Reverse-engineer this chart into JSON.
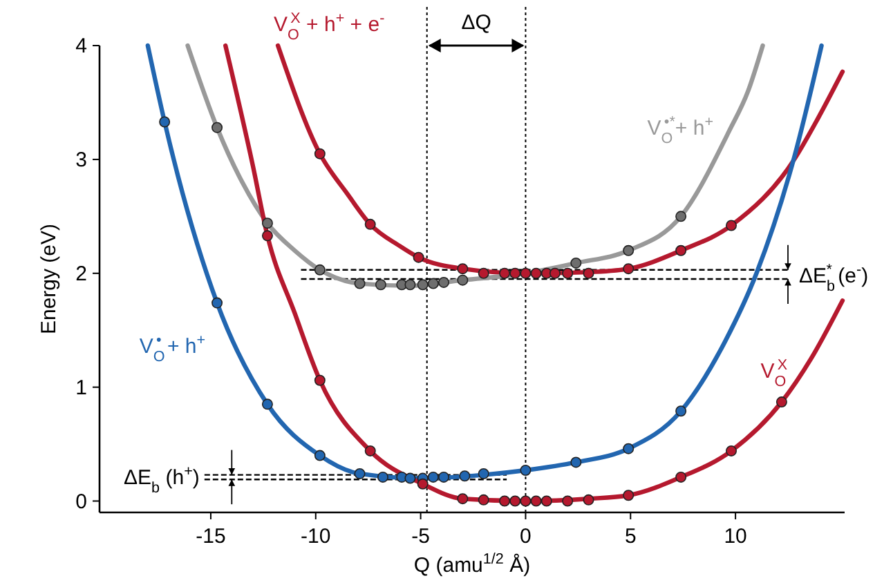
{
  "chart_data": {
    "type": "line",
    "xlabel": "Q (amu$^{1/2}$ Å)",
    "ylabel": "Energy (eV)",
    "xlim": [
      -20.3,
      15.2
    ],
    "ylim": [
      -0.1,
      4
    ],
    "xticks": [
      -15,
      -10,
      -5,
      0,
      5,
      10
    ],
    "yticks": [
      0,
      1,
      2,
      3,
      4
    ],
    "series": [
      {
        "name": "V$_{O}$$^{X}$ + h$^{+}$ + e$^{-}$",
        "color": "#b5192e",
        "x": [
          -11.8,
          -9.8,
          -8.5,
          -7.4,
          -6,
          -5.1,
          -3,
          0,
          3,
          4.9,
          7.4,
          9.8,
          12.8,
          13.9,
          15.1
        ],
        "values": [
          4,
          3.05,
          2.7,
          2.43,
          2.24,
          2.14,
          2.04,
          2.0,
          2.01,
          2.04,
          2.2,
          2.42,
          3.0,
          3.35,
          3.77
        ]
      },
      {
        "name": "V$_{O}$$^{•*}$+ h$^{+}$",
        "color": "#999999",
        "x": [
          -16.1,
          -14.7,
          -13.5,
          -12.3,
          -11,
          -9.8,
          -7.9,
          -5.5,
          -3,
          0,
          2.4,
          4.9,
          7.4,
          9.7,
          10.6,
          11.3
        ],
        "values": [
          4,
          3.28,
          2.8,
          2.44,
          2.2,
          2.03,
          1.91,
          1.89,
          1.94,
          2.0,
          2.09,
          2.2,
          2.5,
          3.25,
          3.6,
          4
        ]
      },
      {
        "name": "V$_{O}$$^{•}$ + h$^{+}$",
        "color": "#2266b0",
        "x": [
          -18,
          -17.2,
          -14.7,
          -12.3,
          -9.8,
          -7.9,
          -5,
          -2,
          0,
          2.4,
          4.9,
          7.4,
          9.5,
          11,
          12.8,
          14.1
        ],
        "values": [
          4,
          3.33,
          1.74,
          0.85,
          0.4,
          0.24,
          0.2,
          0.23,
          0.27,
          0.34,
          0.46,
          0.79,
          1.4,
          2,
          3.02,
          4
        ]
      },
      {
        "name": "V$_{O}$$^{X}$",
        "color": "#b5192e",
        "x": [
          -14.3,
          -13,
          -12.3,
          -11,
          -9.8,
          -7.4,
          -4.9,
          -3,
          0,
          3,
          4.9,
          7.4,
          9.8,
          12.2,
          13.6,
          15.1
        ],
        "values": [
          4,
          2.95,
          2.33,
          1.65,
          1.06,
          0.44,
          0.15,
          0.02,
          0,
          0.02,
          0.05,
          0.21,
          0.44,
          0.87,
          1.25,
          1.76
        ]
      },
      {
        "type": "scatter",
        "color": "#b5192e",
        "x": [
          -9.8,
          -7.4,
          -5.1,
          -3,
          -2,
          -1,
          -0.5,
          0,
          0.5,
          1,
          1.4,
          2,
          3,
          4.9,
          7.4,
          9.8
        ],
        "values": [
          3.05,
          2.43,
          2.14,
          2.04,
          2.0,
          2.0,
          2.0,
          2.0,
          2.0,
          2.0,
          2.0,
          2.0,
          2.0,
          2.04,
          2.2,
          2.42
        ]
      },
      {
        "type": "scatter",
        "color": "#6e6e6e",
        "x": [
          -14.7,
          -12.3,
          -9.8,
          -7.9,
          -6.9,
          -5.9,
          -5.5,
          -4.9,
          -4.4,
          -3.9,
          -3,
          2.4,
          4.9,
          7.4
        ],
        "values": [
          3.28,
          2.44,
          2.03,
          1.91,
          1.9,
          1.9,
          1.9,
          1.9,
          1.91,
          1.92,
          1.94,
          2.09,
          2.2,
          2.5
        ]
      },
      {
        "type": "scatter",
        "color": "#2266b0",
        "x": [
          -17.2,
          -14.7,
          -12.3,
          -9.8,
          -7.9,
          -6.8,
          -5.9,
          -5.5,
          -4.9,
          -4.4,
          -3.9,
          -2.9,
          -2,
          0,
          2.4,
          4.9,
          7.4
        ],
        "values": [
          3.33,
          1.74,
          0.85,
          0.4,
          0.24,
          0.21,
          0.21,
          0.2,
          0.2,
          0.21,
          0.21,
          0.22,
          0.24,
          0.27,
          0.34,
          0.46,
          0.79
        ]
      },
      {
        "type": "scatter",
        "color": "#b5192e",
        "x": [
          -12.3,
          -9.8,
          -7.4,
          -4.9,
          -3,
          -2,
          -1,
          -0.5,
          0,
          0.5,
          1,
          2,
          3,
          4.9,
          7.4,
          9.8,
          12.2
        ],
        "values": [
          2.33,
          1.06,
          0.44,
          0.15,
          0.02,
          0.01,
          0,
          0,
          0,
          0,
          0,
          0,
          0.01,
          0.05,
          0.21,
          0.44,
          0.87
        ]
      }
    ],
    "ref_lines": [
      {
        "axis": "x",
        "value": -4.7,
        "line_style": "dotted",
        "color": "#000000"
      },
      {
        "axis": "x",
        "value": 0,
        "line_style": "dotted",
        "color": "#000000"
      },
      {
        "axis": "y",
        "value": 2.03,
        "line_style": "dashed",
        "color": "#000000"
      },
      {
        "axis": "y",
        "value": 1.95,
        "line_style": "dashed",
        "color": "#000000"
      },
      {
        "axis": "y",
        "value": 0.23,
        "line_style": "dashed",
        "color": "#000000"
      },
      {
        "axis": "y",
        "value": 0.19,
        "line_style": "dashed",
        "color": "#000000"
      }
    ],
    "annotations": [
      "ΔQ",
      "ΔE$_{b}$$^{*}$ (e$^{-}$)",
      "ΔE$_{b}$ (h$^{+}$)"
    ]
  }
}
